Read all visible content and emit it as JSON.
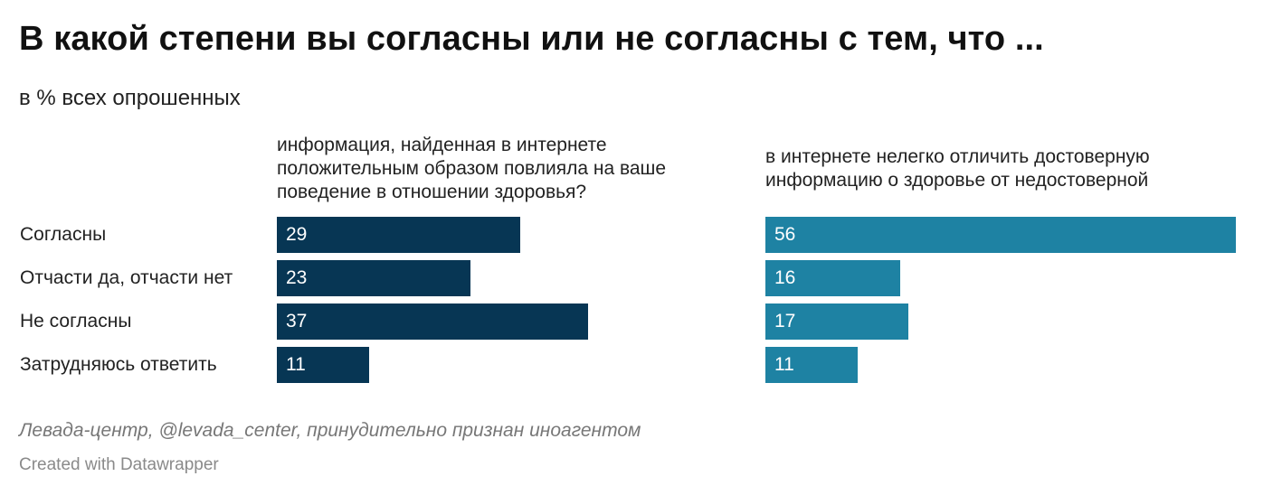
{
  "title": "В какой степени вы согласны или не согласны с тем, что ...",
  "subtitle": "в % всех опрошенных",
  "source": "Левада-центр, @levada_center, принудительно признан иноагентом",
  "credit": "Created with Datawrapper",
  "chart_data": {
    "type": "bar",
    "orientation": "horizontal",
    "categories": [
      "Согласны",
      "Отчасти да, отчасти нет",
      "Не согласны",
      "Затрудняюсь ответить"
    ],
    "series": [
      {
        "name": "информация, найденная в интернете положительным образом повлияла на ваше поведение в отношении здоровья?",
        "color": "#073654",
        "values": [
          29,
          23,
          37,
          11
        ]
      },
      {
        "name": "в интернете нелегко отличить достоверную информацию о здоровье от недостоверной",
        "color": "#1e82a3",
        "values": [
          56,
          16,
          17,
          11
        ]
      }
    ],
    "xlim": [
      0,
      56
    ],
    "grid": false,
    "data_labels": "inside-left"
  }
}
